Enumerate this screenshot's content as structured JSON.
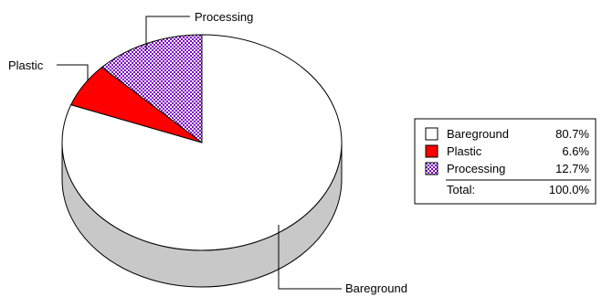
{
  "chart_data": {
    "type": "pie",
    "style": "3d",
    "title": "",
    "slices": [
      {
        "name": "Bareground",
        "value": 80.7,
        "display": "80.7%",
        "color": "#ffffff",
        "pattern": "none"
      },
      {
        "name": "Plastic",
        "value": 6.6,
        "display": "6.6%",
        "color": "#ff0000",
        "pattern": "none"
      },
      {
        "name": "Processing",
        "value": 12.7,
        "display": "12.7%",
        "color": "#7b00c8",
        "pattern": "checker"
      }
    ],
    "total": {
      "label": "Total:",
      "display": "100.0%"
    },
    "side_color": "#c8c8c8",
    "legend_placement": "right"
  }
}
